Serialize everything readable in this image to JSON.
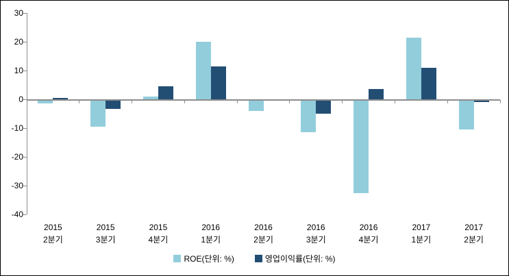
{
  "chart": {
    "legend_items": [
      {
        "label": "ROE(단위: %)"
      },
      {
        "label": "영업이익률(단위: %)"
      }
    ]
  },
  "chart_data": {
    "type": "bar",
    "title": "",
    "categories": [
      "2015 2분기",
      "2015 3분기",
      "2015 4분기",
      "2016 1분기",
      "2016 2분기",
      "2016 3분기",
      "2016 4분기",
      "2017 1분기",
      "2017 2분기"
    ],
    "category_lines": [
      {
        "line1": "2015",
        "line2": "2분기"
      },
      {
        "line1": "2015",
        "line2": "3분기"
      },
      {
        "line1": "2015",
        "line2": "4분기"
      },
      {
        "line1": "2016",
        "line2": "1분기"
      },
      {
        "line1": "2016",
        "line2": "2분기"
      },
      {
        "line1": "2016",
        "line2": "3분기"
      },
      {
        "line1": "2016",
        "line2": "4분기"
      },
      {
        "line1": "2017",
        "line2": "1분기"
      },
      {
        "line1": "2017",
        "line2": "2분기"
      }
    ],
    "series": [
      {
        "name": "ROE(단위: %)",
        "color": "#92CDDC",
        "values": [
          -1.5,
          -9.5,
          1.0,
          20.0,
          -4.0,
          -11.5,
          -32.5,
          21.4,
          -10.5
        ]
      },
      {
        "name": "영업이익률(단위: %)",
        "color": "#234E74",
        "values": [
          0.4,
          -3.3,
          4.5,
          11.5,
          0.0,
          -5.0,
          3.6,
          11.0,
          -0.9
        ]
      }
    ],
    "ylim": [
      -40,
      30
    ],
    "yticks": [
      30,
      20,
      10,
      0,
      -10,
      -20,
      -30,
      -40
    ],
    "grid": false,
    "xlabel": "",
    "ylabel": "",
    "legend_position": "bottom",
    "colors": {
      "axis": "#8C8C8C",
      "text": "#000000",
      "background": "#FFFFFF",
      "frame_border": "#000000"
    }
  }
}
